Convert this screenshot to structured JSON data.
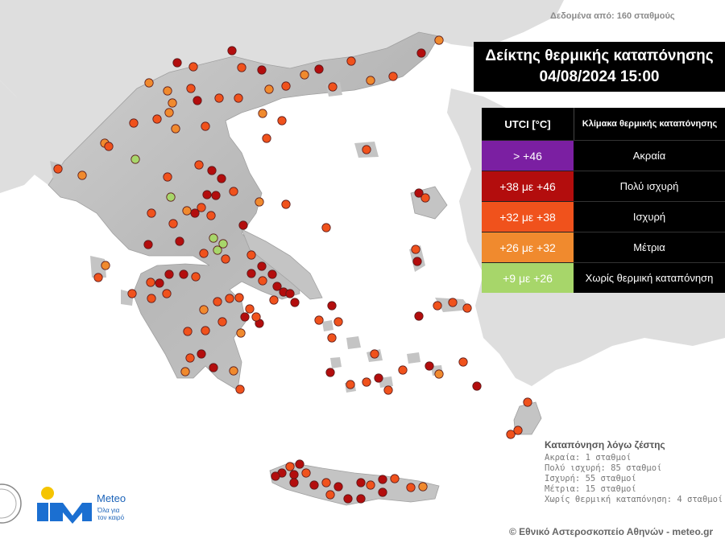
{
  "header": {
    "note": "Δεδομένα από: 160 σταθμούς"
  },
  "title": {
    "line1": "Δείκτης θερμικής καταπόνησης",
    "line2": "04/08/2024 15:00"
  },
  "legend": {
    "col_left": "UTCI [°C]",
    "col_right": "Κλίμακα θερμικής καταπόνησης",
    "rows": [
      {
        "range": "> +46",
        "label": "Ακραία",
        "color": "#7b1fa2"
      },
      {
        "range": "+38 με +46",
        "label": "Πολύ ισχυρή",
        "color": "#b30d0d"
      },
      {
        "range": "+32 με +38",
        "label": "Ισχυρή",
        "color": "#f0521c"
      },
      {
        "range": "+26 με +32",
        "label": "Μέτρια",
        "color": "#f08a2e"
      },
      {
        "range": "+9 με +26",
        "label": "Χωρίς θερμική καταπόνηση",
        "color": "#a7d66a"
      }
    ]
  },
  "stats": {
    "title": "Καταπόνηση λόγω ζέστης",
    "lines": [
      "Ακραία: 1 σταθμοί",
      "Πολύ ισχυρή: 85 σταθμοί",
      "Ισχυρή: 55 σταθμοί",
      "Μέτρια: 15 σταθμοί",
      "Χωρίς θερμική καταπόνηση: 4 σταθμοί"
    ]
  },
  "logo": {
    "name": "Meteo",
    "tagline_1": "Όλα για",
    "tagline_2": "τον καιρό"
  },
  "copyright": "© Εθνικό Αστεροσκοπείο Αθηνών - meteo.gr",
  "colors": {
    "sea": "#ffffff",
    "land": "#d9d9d9",
    "greece": "#bfbfbf",
    "station_stroke": "#5a1a1a"
  }
}
